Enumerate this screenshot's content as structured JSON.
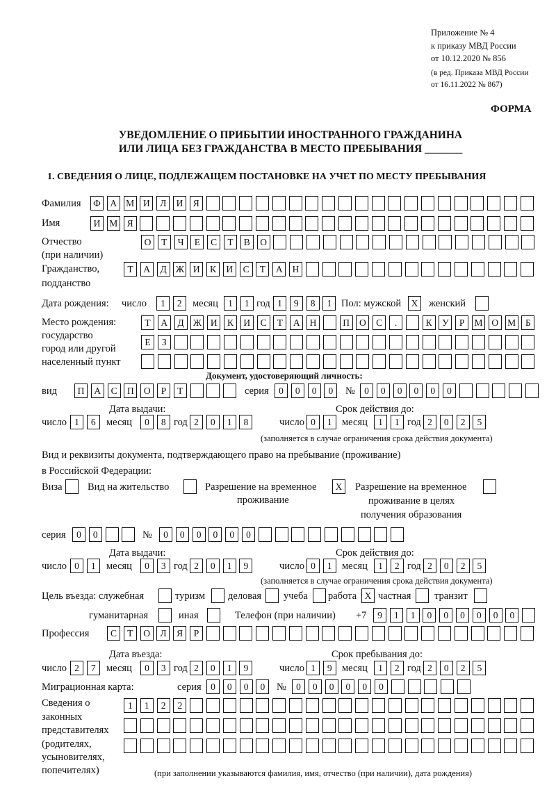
{
  "header": {
    "appendix": "Приложение № 4",
    "order": "к приказу МВД России",
    "order_date": "от 10.12.2020 № 856",
    "edition": "(в ред. Приказа МВД России",
    "edition_date": "от 16.11.2022 № 867)",
    "form_label": "ФОРМА",
    "title_line1": "УВЕДОМЛЕНИЕ О ПРИБЫТИИ ИНОСТРАННОГО ГРАЖДАНИНА",
    "title_line2": "ИЛИ ЛИЦА БЕЗ ГРАЖДАНСТВА В МЕСТО ПРЕБЫВАНИЯ _______"
  },
  "section1": {
    "heading": "1. СВЕДЕНИЯ О ЛИЦЕ, ПОДЛЕЖАЩЕМ ПОСТАНОВКЕ НА УЧЕТ ПО МЕСТУ ПРЕБЫВАНИЯ",
    "labels": {
      "surname": "Фамилия",
      "name": "Имя",
      "patronymic": "Отчество",
      "patronymic_note": "(при наличии)",
      "citizenship": "Гражданство,",
      "citizenship2": "подданство",
      "birth_date": "Дата рождения:",
      "day": "число",
      "month": "месяц",
      "year": "год",
      "sex": "Пол: мужской",
      "female": "женский",
      "birthplace1": "Место рождения:",
      "birthplace2": "государство",
      "birthplace3": "город или другой",
      "birthplace4": "населенный пункт",
      "id_doc": "Документ, удостоверяющий личность:",
      "kind": "вид",
      "series": "серия",
      "number": "№",
      "issue_date": "Дата выдачи:",
      "valid_until": "Срок действия до:",
      "validity_note": "(заполняется в случае ограничения срока действия документа)",
      "stay_doc1": "Вид и реквизиты документа, подтверждающего право на пребывание (проживание)",
      "stay_doc2": "в Российской Федерации:",
      "visa": "Виза",
      "residence": "Вид на жительство",
      "trp1": "Разрешение на временное",
      "trp2": "проживание",
      "trp_edu1": "Разрешение на временное",
      "trp_edu2": "проживание в целях",
      "trp_edu3": "получения образования",
      "purpose": "Цель въезда: служебная",
      "tourism": "туризм",
      "business": "деловая",
      "study": "учеба",
      "work": "работа",
      "private": "частная",
      "transit": "транзит",
      "humanitarian": "гуманитарная",
      "other": "иная",
      "phone": "Телефон (при наличии)",
      "phone_prefix": "+7",
      "profession": "Профессия",
      "entry_date": "Дата въезда:",
      "stay_until": "Срок пребывания до:",
      "migration_card": "Миграционная карта:",
      "reps1": "Сведения о",
      "reps2": "законных",
      "reps3": "представителях",
      "reps4": "(родителях,",
      "reps5": "усыновителях,",
      "reps6": "попечителях)",
      "reps_note": "(при заполнении указываются фамилия, имя, отчество (при наличии), дата рождения)"
    },
    "values": {
      "surname": "ФАМИЛИЯ",
      "name": "ИМЯ",
      "patronymic": "ОТЧЕСТВО",
      "citizenship": "ТАДЖИКИСТАН",
      "birth_day": "12",
      "birth_month": "11",
      "birth_year": "1981",
      "male": "X",
      "female": "",
      "birthplace_line1": "ТАДЖИКИСТАН ПОС. КУРМОМБ",
      "birthplace_line2": "ЕЗ",
      "birthplace_line3": "",
      "id_kind": "ПАСПОРТ",
      "id_series": "0000",
      "id_number": "000000",
      "id_issue_day": "16",
      "id_issue_month": "08",
      "id_issue_year": "2018",
      "id_valid_day": "01",
      "id_valid_month": "11",
      "id_valid_year": "2025",
      "visa": "",
      "residence": "",
      "trp": "X",
      "trp_edu": "",
      "stay_series": "00",
      "stay_number": "000000",
      "stay_issue_day": "01",
      "stay_issue_month": "03",
      "stay_issue_year": "2019",
      "stay_valid_day": "01",
      "stay_valid_month": "12",
      "stay_valid_year": "2025",
      "purpose_official": "",
      "purpose_tourism": "",
      "purpose_business": "",
      "purpose_study": "",
      "purpose_work": "X",
      "purpose_private": "",
      "purpose_transit": "",
      "purpose_humanitarian": "",
      "purpose_other": "",
      "phone": "911000000",
      "profession": "СТОЛЯР",
      "entry_day": "27",
      "entry_month": "03",
      "entry_year": "2019",
      "stay_until_day": "19",
      "stay_until_month": "12",
      "stay_until_year": "2025",
      "mc_series": "0000",
      "mc_number": "000000",
      "reps_line1": "1122",
      "reps_line2": "",
      "reps_line3": ""
    }
  }
}
